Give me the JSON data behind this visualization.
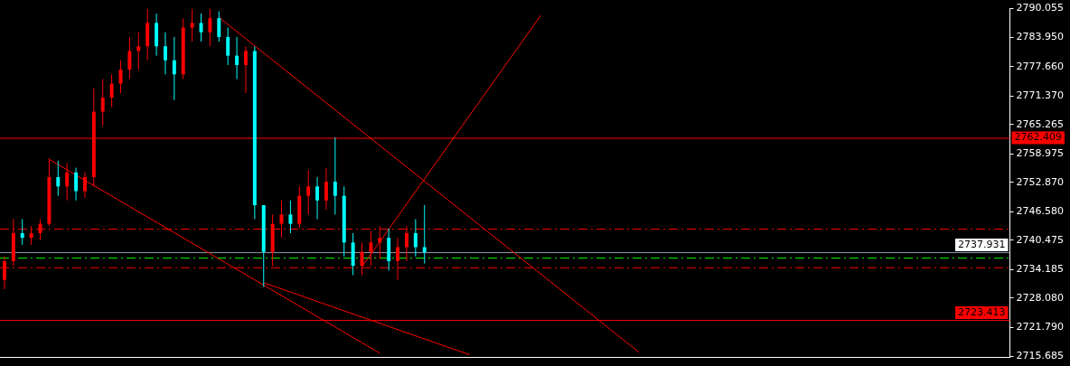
{
  "chart_data": {
    "type": "candlestick",
    "tick_labels": "y",
    "grid": false,
    "legend": false,
    "categories": [
      null,
      null,
      null,
      null,
      null,
      null,
      null,
      null,
      null,
      null,
      null,
      null,
      null,
      null,
      null,
      null,
      null,
      null,
      null,
      null,
      null,
      null,
      null,
      null,
      null,
      null,
      null,
      null,
      null,
      null,
      null,
      null,
      null,
      null,
      null,
      null,
      null,
      null,
      null,
      null,
      null,
      null,
      null,
      null,
      null,
      null,
      null,
      null,
      null,
      null,
      null,
      null,
      null,
      null,
      null,
      null,
      null,
      null,
      null,
      null,
      null,
      null,
      null,
      null,
      null,
      null,
      null,
      null,
      null,
      null,
      null,
      null,
      null,
      null,
      null,
      null,
      null,
      null,
      null,
      null,
      null,
      null,
      null,
      null,
      null,
      null,
      null,
      null,
      null,
      null,
      null,
      null,
      null,
      null,
      null,
      null,
      null,
      null,
      null,
      null,
      null,
      null,
      null,
      null,
      null,
      null,
      null,
      null,
      null,
      null,
      null,
      null,
      null
    ],
    "ohlc": [
      [
        2732,
        2737,
        2730,
        2736
      ],
      [
        2736,
        2745,
        2735,
        2742
      ],
      [
        2742,
        2745,
        2739.5,
        2741
      ],
      [
        2741,
        2743.5,
        2739.5,
        2742
      ],
      [
        2742,
        2745,
        2740.5,
        2744
      ],
      [
        2744,
        2758,
        2743.5,
        2754
      ],
      [
        2754,
        2757.5,
        2750,
        2752
      ],
      [
        2752,
        2757,
        2749,
        2755
      ],
      [
        2755,
        2756,
        2749,
        2751
      ],
      [
        2751,
        2755,
        2749.5,
        2754
      ],
      [
        2754,
        2773,
        2752,
        2768
      ],
      [
        2768,
        2775,
        2765,
        2771
      ],
      [
        2771,
        2776,
        2769,
        2774
      ],
      [
        2774,
        2779,
        2772,
        2777
      ],
      [
        2777,
        2784,
        2775,
        2781
      ],
      [
        2781,
        2785,
        2777,
        2782
      ],
      [
        2782,
        2790,
        2779,
        2787
      ],
      [
        2787,
        2789,
        2780,
        2782
      ],
      [
        2782,
        2785,
        2776,
        2779
      ],
      [
        2779,
        2784,
        2770.5,
        2776
      ],
      [
        2776,
        2788,
        2775,
        2786
      ],
      [
        2786,
        2790,
        2783,
        2787
      ],
      [
        2787,
        2789,
        2783,
        2785
      ],
      [
        2785,
        2790,
        2782,
        2788
      ],
      [
        2788,
        2789.5,
        2783,
        2784
      ],
      [
        2784,
        2786,
        2778,
        2780
      ],
      [
        2780,
        2784,
        2775,
        2778
      ],
      [
        2778,
        2782,
        2772,
        2781
      ],
      [
        2781,
        2782,
        2745,
        2748
      ],
      [
        2748,
        2748,
        2730.5,
        2738
      ],
      [
        2738,
        2746,
        2735,
        2744
      ],
      [
        2744,
        2749,
        2741,
        2746
      ],
      [
        2746,
        2749,
        2742,
        2744
      ],
      [
        2744,
        2752,
        2743,
        2750
      ],
      [
        2750,
        2755.5,
        2746,
        2752
      ],
      [
        2752,
        2754,
        2745,
        2749
      ],
      [
        2749,
        2756,
        2747,
        2753
      ],
      [
        2753,
        2762.5,
        2746,
        2750
      ],
      [
        2750,
        2752,
        2737,
        2740
      ],
      [
        2740,
        2742,
        2733,
        2735
      ],
      [
        2735,
        2740,
        2733,
        2738
      ],
      [
        2738,
        2742.5,
        2735,
        2740
      ],
      [
        2740,
        2743.5,
        2736.5,
        2741
      ],
      [
        2741,
        2743,
        2734,
        2736
      ],
      [
        2736,
        2741,
        2732,
        2739
      ],
      [
        2739,
        2743.5,
        2736,
        2742
      ],
      [
        2742,
        2745,
        2737,
        2739
      ],
      [
        2739,
        2748,
        2735.5,
        2737.9
      ],
      null,
      null,
      null,
      null,
      null,
      null,
      null,
      null,
      null,
      null,
      null,
      null,
      null,
      null,
      null,
      null,
      null,
      null,
      null,
      null,
      null,
      null,
      null,
      null,
      null,
      null,
      null,
      null,
      null,
      null,
      null,
      null,
      null,
      null,
      null,
      null,
      null,
      null,
      null,
      null,
      null,
      null,
      null,
      null,
      null,
      null,
      null,
      null,
      null,
      null,
      null,
      null,
      null,
      null,
      null,
      null,
      null,
      null,
      null,
      null,
      null,
      null,
      null,
      null,
      null
    ],
    "colors": [
      "#ff0000",
      "#ff0000",
      "#00ffff",
      "#ff0000",
      "#ff0000",
      "#ff0000",
      "#00ffff",
      "#ff0000",
      "#00ffff",
      "#ff0000",
      "#ff0000",
      "#ff0000",
      "#ff0000",
      "#ff0000",
      "#ff0000",
      "#ff0000",
      "#ff0000",
      "#00ffff",
      "#00ffff",
      "#00ffff",
      "#ff0000",
      "#ff0000",
      "#00ffff",
      "#ff0000",
      "#00ffff",
      "#00ffff",
      "#00ffff",
      "#ff0000",
      "#00ffff",
      "#00ffff",
      "#ff0000",
      "#ff0000",
      "#00ffff",
      "#ff0000",
      "#ff0000",
      "#00ffff",
      "#ff0000",
      "#00ffff",
      "#00ffff",
      "#00ffff",
      "#ff0000",
      "#ff0000",
      "#ff0000",
      "#00ffff",
      "#ff0000",
      "#ff0000",
      "#00ffff",
      "#00ffff",
      null,
      null,
      null,
      null,
      null,
      null,
      null,
      null,
      null,
      null,
      null,
      null,
      null,
      null,
      null,
      null,
      null,
      null,
      null,
      null,
      null,
      null,
      null,
      null,
      null,
      null,
      null,
      null,
      null,
      null,
      null,
      null,
      null,
      null,
      null,
      null,
      null,
      null,
      null,
      null,
      null,
      null,
      null,
      null,
      null,
      null,
      null,
      null,
      null,
      null,
      null,
      null,
      null,
      null,
      null,
      null,
      null,
      null,
      null,
      null,
      null,
      null,
      null,
      null,
      null
    ],
    "series": [
      {
        "type": "line",
        "color": "#ff0000",
        "values": [
          null,
          null,
          null,
          null,
          null,
          2757.8,
          null,
          null,
          null,
          null,
          null,
          null,
          null,
          null,
          null,
          null,
          null,
          null,
          null,
          null,
          null,
          null,
          null,
          null,
          null,
          null,
          null,
          null,
          null,
          null,
          null,
          null,
          null,
          null,
          null,
          null,
          null,
          null,
          null,
          null,
          null,
          null,
          2716.3,
          null,
          null,
          null,
          null,
          null,
          null,
          null,
          null,
          null,
          null,
          null,
          null,
          null,
          null,
          null,
          null,
          null,
          null,
          null,
          null,
          null,
          null,
          null,
          null,
          null,
          null,
          null,
          null,
          null,
          null,
          null,
          null,
          null,
          null,
          null,
          null,
          null,
          null,
          null,
          null,
          null,
          null,
          null,
          null,
          null,
          null,
          null,
          null,
          null,
          null,
          null,
          null,
          null,
          null,
          null,
          null,
          null,
          null,
          null,
          null,
          null,
          null,
          null,
          null,
          null,
          null,
          null,
          null,
          null,
          null
        ]
      },
      {
        "type": "line",
        "color": "#ff0000",
        "values": [
          null,
          null,
          null,
          null,
          null,
          null,
          null,
          null,
          null,
          null,
          null,
          null,
          null,
          null,
          null,
          null,
          null,
          null,
          null,
          null,
          null,
          null,
          null,
          null,
          2788.2,
          null,
          null,
          null,
          null,
          null,
          null,
          null,
          null,
          null,
          null,
          null,
          null,
          null,
          null,
          null,
          null,
          null,
          null,
          null,
          null,
          null,
          null,
          null,
          null,
          null,
          null,
          null,
          null,
          null,
          null,
          null,
          null,
          null,
          null,
          null,
          null,
          null,
          null,
          null,
          null,
          null,
          null,
          null,
          null,
          null,
          null,
          2716.5,
          null,
          null,
          null,
          null,
          null,
          null,
          null,
          null,
          null,
          null,
          null,
          null,
          null,
          null,
          null,
          null,
          null,
          null,
          null,
          null,
          null,
          null,
          null,
          null,
          null,
          null,
          null,
          null,
          null,
          null,
          null,
          null,
          null,
          null,
          null,
          null,
          null,
          null,
          null,
          null,
          null
        ]
      },
      {
        "type": "line",
        "color": "#ff0000",
        "values": [
          null,
          null,
          null,
          null,
          null,
          null,
          null,
          null,
          null,
          null,
          null,
          null,
          null,
          null,
          null,
          null,
          null,
          null,
          null,
          null,
          null,
          null,
          null,
          null,
          null,
          null,
          null,
          null,
          null,
          2731.4,
          null,
          null,
          null,
          null,
          null,
          null,
          null,
          null,
          null,
          null,
          null,
          null,
          null,
          null,
          null,
          null,
          null,
          null,
          null,
          null,
          null,
          null,
          2716,
          null,
          null,
          null,
          null,
          null,
          null,
          null,
          null,
          null,
          null,
          null,
          null,
          null,
          null,
          null,
          null,
          null,
          null,
          null,
          null,
          null,
          null,
          null,
          null,
          null,
          null,
          null,
          null,
          null,
          null,
          null,
          null,
          null,
          null,
          null,
          null,
          null,
          null,
          null,
          null,
          null,
          null,
          null,
          null,
          null,
          null,
          null,
          null,
          null,
          null,
          null,
          null,
          null,
          null,
          null,
          null,
          null,
          null,
          null,
          null
        ]
      },
      {
        "type": "line",
        "color": "#ff0000",
        "values": [
          null,
          null,
          null,
          null,
          null,
          null,
          null,
          null,
          null,
          null,
          null,
          null,
          null,
          null,
          null,
          null,
          null,
          null,
          null,
          null,
          null,
          null,
          null,
          null,
          null,
          null,
          null,
          null,
          null,
          null,
          null,
          null,
          null,
          null,
          null,
          null,
          null,
          null,
          null,
          null,
          2734.8,
          null,
          null,
          null,
          null,
          null,
          null,
          null,
          null,
          null,
          null,
          null,
          null,
          null,
          null,
          null,
          null,
          null,
          null,
          null,
          2788.6,
          null,
          null,
          null,
          null,
          null,
          null,
          null,
          null,
          null,
          null,
          null,
          null,
          null,
          null,
          null,
          null,
          null,
          null,
          null,
          null,
          null,
          null,
          null,
          null,
          null,
          null,
          null,
          null,
          null,
          null,
          null,
          null,
          null,
          null,
          null,
          null,
          null,
          null,
          null,
          null,
          null,
          null,
          null,
          null,
          null,
          null,
          null,
          null,
          null,
          null,
          null,
          null
        ]
      }
    ],
    "ref_lines": [
      {
        "axis": "y",
        "value": 2762.409,
        "label": "2762.409",
        "color": "#ff0000",
        "line_style": "solid"
      },
      {
        "axis": "y",
        "value": 2723.413,
        "label": "2723.413",
        "color": "#ff0000",
        "line_style": "solid"
      },
      {
        "axis": "y",
        "value": 2737.931,
        "label": "2737.931",
        "color": "#8a96a6",
        "line_style": "solid"
      },
      {
        "axis": "y",
        "value": 2742.95,
        "color": "#ff0000",
        "line_style": "dashed"
      },
      {
        "axis": "y",
        "value": 2736.75,
        "color": "#00ff00",
        "line_style": "dashed"
      },
      {
        "axis": "y",
        "value": 2734.7,
        "color": "#ff0000",
        "line_style": "dashed"
      }
    ],
    "ylim": [
      2715.5,
      2790.055
    ],
    "yticks": [
      {
        "value": 2715.685,
        "label": "2715.685"
      },
      {
        "value": 2721.79,
        "label": "2721.790"
      },
      {
        "value": 2728.08,
        "label": "2728.080"
      },
      {
        "value": 2734.185,
        "label": "2734.185"
      },
      {
        "value": 2740.475,
        "label": "2740.475"
      },
      {
        "value": 2746.58,
        "label": "2746.580"
      },
      {
        "value": 2752.87,
        "label": "2752.870"
      },
      {
        "value": 2758.975,
        "label": "2758.975"
      },
      {
        "value": 2765.265,
        "label": "2765.265"
      },
      {
        "value": 2771.37,
        "label": "2771.370"
      },
      {
        "value": 2777.66,
        "label": "2777.660"
      },
      {
        "value": 2783.95,
        "label": "2783.950"
      },
      {
        "value": 2790.055,
        "label": "2790.055"
      }
    ]
  }
}
